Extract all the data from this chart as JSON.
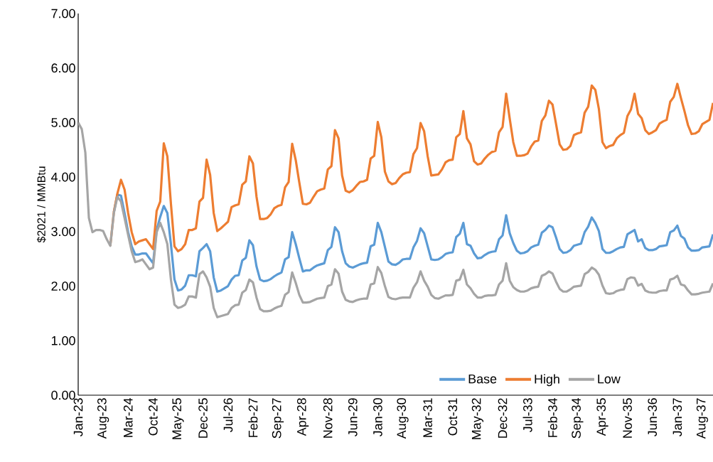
{
  "chart_data": {
    "type": "line",
    "ylabel": "$2021 / MMBtu",
    "categories": [
      "Jan-23",
      null,
      null,
      null,
      null,
      null,
      null,
      "Aug-23",
      null,
      null,
      null,
      null,
      null,
      null,
      "Mar-24",
      null,
      null,
      null,
      null,
      null,
      null,
      "Oct-24",
      null,
      null,
      null,
      null,
      null,
      null,
      "May-25",
      null,
      null,
      null,
      null,
      null,
      null,
      "Dec-25",
      null,
      null,
      null,
      null,
      null,
      null,
      "Jul-26",
      null,
      null,
      null,
      null,
      null,
      null,
      "Feb-27",
      null,
      null,
      null,
      null,
      null,
      null,
      "Sep-27",
      null,
      null,
      null,
      null,
      null,
      null,
      "Apr-28",
      null,
      null,
      null,
      null,
      null,
      null,
      "Nov-28",
      null,
      null,
      null,
      null,
      null,
      null,
      "Jun-29",
      null,
      null,
      null,
      null,
      null,
      null,
      "Jan-30",
      null,
      null,
      null,
      null,
      null,
      null,
      "Aug-30",
      null,
      null,
      null,
      null,
      null,
      null,
      "Mar-31",
      null,
      null,
      null,
      null,
      null,
      null,
      "Oct-31",
      null,
      null,
      null,
      null,
      null,
      null,
      "May-32",
      null,
      null,
      null,
      null,
      null,
      null,
      "Dec-32",
      null,
      null,
      null,
      null,
      null,
      null,
      "Jul-33",
      null,
      null,
      null,
      null,
      null,
      null,
      "Feb-34",
      null,
      null,
      null,
      null,
      null,
      null,
      "Sep-34",
      null,
      null,
      null,
      null,
      null,
      null,
      "Apr-35",
      null,
      null,
      null,
      null,
      null,
      null,
      "Nov-35",
      null,
      null,
      null,
      null,
      null,
      null,
      "Jun-36",
      null,
      null,
      null,
      null,
      null,
      null,
      "Jan-37",
      null,
      null,
      null,
      null,
      null,
      null,
      "Aug-37",
      null,
      null,
      null
    ],
    "series": [
      {
        "name": "Base",
        "color": "#5b9bd5",
        "values": [
          null,
          null,
          null,
          null,
          null,
          null,
          null,
          null,
          null,
          null,
          3.36,
          3.68,
          3.66,
          3.34,
          2.99,
          2.73,
          2.58,
          2.58,
          2.6,
          2.6,
          2.51,
          2.42,
          3.03,
          3.27,
          3.47,
          3.34,
          2.77,
          2.12,
          1.92,
          1.94,
          2.01,
          2.2,
          2.2,
          2.18,
          2.64,
          2.7,
          2.77,
          2.64,
          2.16,
          1.9,
          1.92,
          1.96,
          2.0,
          2.12,
          2.19,
          2.2,
          2.47,
          2.52,
          2.84,
          2.75,
          2.36,
          2.12,
          2.09,
          2.1,
          2.13,
          2.18,
          2.22,
          2.25,
          2.49,
          2.53,
          2.99,
          2.77,
          2.51,
          2.27,
          2.29,
          2.29,
          2.34,
          2.38,
          2.4,
          2.42,
          2.66,
          2.72,
          3.08,
          2.99,
          2.64,
          2.42,
          2.36,
          2.34,
          2.37,
          2.4,
          2.42,
          2.43,
          2.73,
          2.76,
          3.16,
          2.99,
          2.72,
          2.45,
          2.4,
          2.39,
          2.43,
          2.49,
          2.5,
          2.5,
          2.71,
          2.83,
          3.06,
          2.97,
          2.73,
          2.49,
          2.48,
          2.49,
          2.53,
          2.59,
          2.61,
          2.62,
          2.9,
          2.96,
          3.16,
          2.77,
          2.74,
          2.6,
          2.51,
          2.52,
          2.57,
          2.61,
          2.63,
          2.64,
          2.86,
          2.93,
          3.3,
          2.97,
          2.79,
          2.65,
          2.6,
          2.61,
          2.64,
          2.71,
          2.74,
          2.76,
          2.98,
          3.03,
          3.11,
          3.08,
          2.89,
          2.68,
          2.61,
          2.62,
          2.66,
          2.74,
          2.76,
          2.78,
          2.99,
          3.09,
          3.26,
          3.16,
          3.01,
          2.68,
          2.61,
          2.61,
          2.64,
          2.68,
          2.71,
          2.72,
          2.95,
          2.99,
          3.03,
          2.82,
          2.86,
          2.7,
          2.66,
          2.66,
          2.68,
          2.73,
          2.74,
          2.75,
          2.99,
          3.02,
          3.11,
          2.92,
          2.87,
          2.71,
          2.65,
          2.65,
          2.66,
          2.71,
          2.72,
          2.73,
          2.95
        ]
      },
      {
        "name": "High",
        "color": "#ed7d31",
        "values": [
          null,
          null,
          null,
          null,
          null,
          null,
          null,
          null,
          null,
          2.74,
          3.36,
          3.7,
          3.95,
          3.77,
          3.34,
          2.99,
          2.77,
          2.82,
          2.84,
          2.86,
          2.77,
          2.68,
          3.38,
          3.55,
          4.62,
          4.38,
          3.51,
          2.73,
          2.64,
          2.68,
          2.77,
          3.03,
          3.03,
          3.06,
          3.55,
          3.62,
          4.32,
          4.04,
          3.34,
          3.01,
          3.06,
          3.12,
          3.18,
          3.45,
          3.48,
          3.5,
          3.86,
          3.92,
          4.38,
          4.25,
          3.64,
          3.23,
          3.23,
          3.25,
          3.32,
          3.43,
          3.47,
          3.49,
          3.81,
          3.91,
          4.61,
          4.31,
          3.9,
          3.51,
          3.5,
          3.53,
          3.64,
          3.74,
          3.77,
          3.79,
          4.14,
          4.2,
          4.86,
          4.71,
          4.03,
          3.75,
          3.72,
          3.76,
          3.84,
          3.91,
          3.92,
          3.95,
          4.34,
          4.39,
          5.01,
          4.73,
          4.1,
          3.92,
          3.87,
          3.89,
          3.98,
          4.05,
          4.08,
          4.09,
          4.42,
          4.53,
          4.99,
          4.84,
          4.38,
          4.03,
          4.04,
          4.05,
          4.14,
          4.27,
          4.31,
          4.32,
          4.73,
          4.79,
          5.21,
          4.71,
          4.6,
          4.29,
          4.23,
          4.25,
          4.34,
          4.41,
          4.46,
          4.48,
          4.82,
          4.92,
          5.53,
          5.07,
          4.64,
          4.39,
          4.39,
          4.4,
          4.43,
          4.56,
          4.65,
          4.67,
          5.03,
          5.13,
          5.4,
          5.33,
          4.97,
          4.6,
          4.5,
          4.51,
          4.57,
          4.77,
          4.8,
          4.82,
          5.18,
          5.29,
          5.68,
          5.6,
          5.25,
          4.64,
          4.53,
          4.57,
          4.59,
          4.71,
          4.77,
          4.81,
          5.12,
          5.24,
          5.53,
          5.16,
          5.08,
          4.86,
          4.79,
          4.82,
          4.86,
          4.98,
          5.02,
          5.05,
          5.38,
          5.47,
          5.71,
          5.45,
          5.21,
          4.95,
          4.79,
          4.8,
          4.84,
          4.97,
          5.01,
          5.05,
          5.36
        ]
      },
      {
        "name": "Low",
        "color": "#a5a5a5",
        "values": [
          5.0,
          4.88,
          4.45,
          3.25,
          2.99,
          3.03,
          3.03,
          3.01,
          2.86,
          2.74,
          3.34,
          3.64,
          3.55,
          3.25,
          2.94,
          2.64,
          2.44,
          2.46,
          2.49,
          2.4,
          2.31,
          2.34,
          2.99,
          3.16,
          2.99,
          2.77,
          2.12,
          1.66,
          1.6,
          1.62,
          1.66,
          1.81,
          1.81,
          1.79,
          2.22,
          2.27,
          2.16,
          1.99,
          1.6,
          1.43,
          1.45,
          1.47,
          1.49,
          1.6,
          1.65,
          1.66,
          1.88,
          1.93,
          2.12,
          2.07,
          1.79,
          1.58,
          1.54,
          1.54,
          1.55,
          1.59,
          1.62,
          1.64,
          1.84,
          1.89,
          2.25,
          2.06,
          1.84,
          1.7,
          1.7,
          1.71,
          1.74,
          1.77,
          1.78,
          1.79,
          2.0,
          2.03,
          2.31,
          2.23,
          1.9,
          1.75,
          1.72,
          1.71,
          1.74,
          1.76,
          1.77,
          1.77,
          2.03,
          2.05,
          2.35,
          2.24,
          2.0,
          1.8,
          1.77,
          1.76,
          1.78,
          1.79,
          1.79,
          1.79,
          1.97,
          2.07,
          2.27,
          2.1,
          1.99,
          1.84,
          1.78,
          1.77,
          1.8,
          1.83,
          1.83,
          1.84,
          2.1,
          2.12,
          2.3,
          2.03,
          1.96,
          1.86,
          1.79,
          1.79,
          1.82,
          1.83,
          1.83,
          1.84,
          2.03,
          2.1,
          2.42,
          2.1,
          1.98,
          1.93,
          1.9,
          1.9,
          1.92,
          1.96,
          1.98,
          1.99,
          2.19,
          2.22,
          2.27,
          2.23,
          2.08,
          1.95,
          1.9,
          1.9,
          1.94,
          1.99,
          2.0,
          2.01,
          2.22,
          2.26,
          2.34,
          2.3,
          2.21,
          2.01,
          1.87,
          1.86,
          1.87,
          1.91,
          1.93,
          1.94,
          2.13,
          2.16,
          2.15,
          2.01,
          2.04,
          1.92,
          1.89,
          1.88,
          1.88,
          1.91,
          1.92,
          1.92,
          2.12,
          2.14,
          2.19,
          2.03,
          2.01,
          1.92,
          1.85,
          1.85,
          1.86,
          1.88,
          1.89,
          1.9,
          2.05
        ]
      }
    ],
    "ylim": [
      0,
      7
    ],
    "yticks": [
      {
        "value": 0,
        "label": "0.00"
      },
      {
        "value": 1,
        "label": "1.00"
      },
      {
        "value": 2,
        "label": "2.00"
      },
      {
        "value": 3,
        "label": "3.00"
      },
      {
        "value": 4,
        "label": "4.00"
      },
      {
        "value": 5,
        "label": "5.00"
      },
      {
        "value": 6,
        "label": "6.00"
      },
      {
        "value": 7,
        "label": "7.00"
      }
    ],
    "legend": "bottom right",
    "marker": "none",
    "line_style": "solid"
  }
}
